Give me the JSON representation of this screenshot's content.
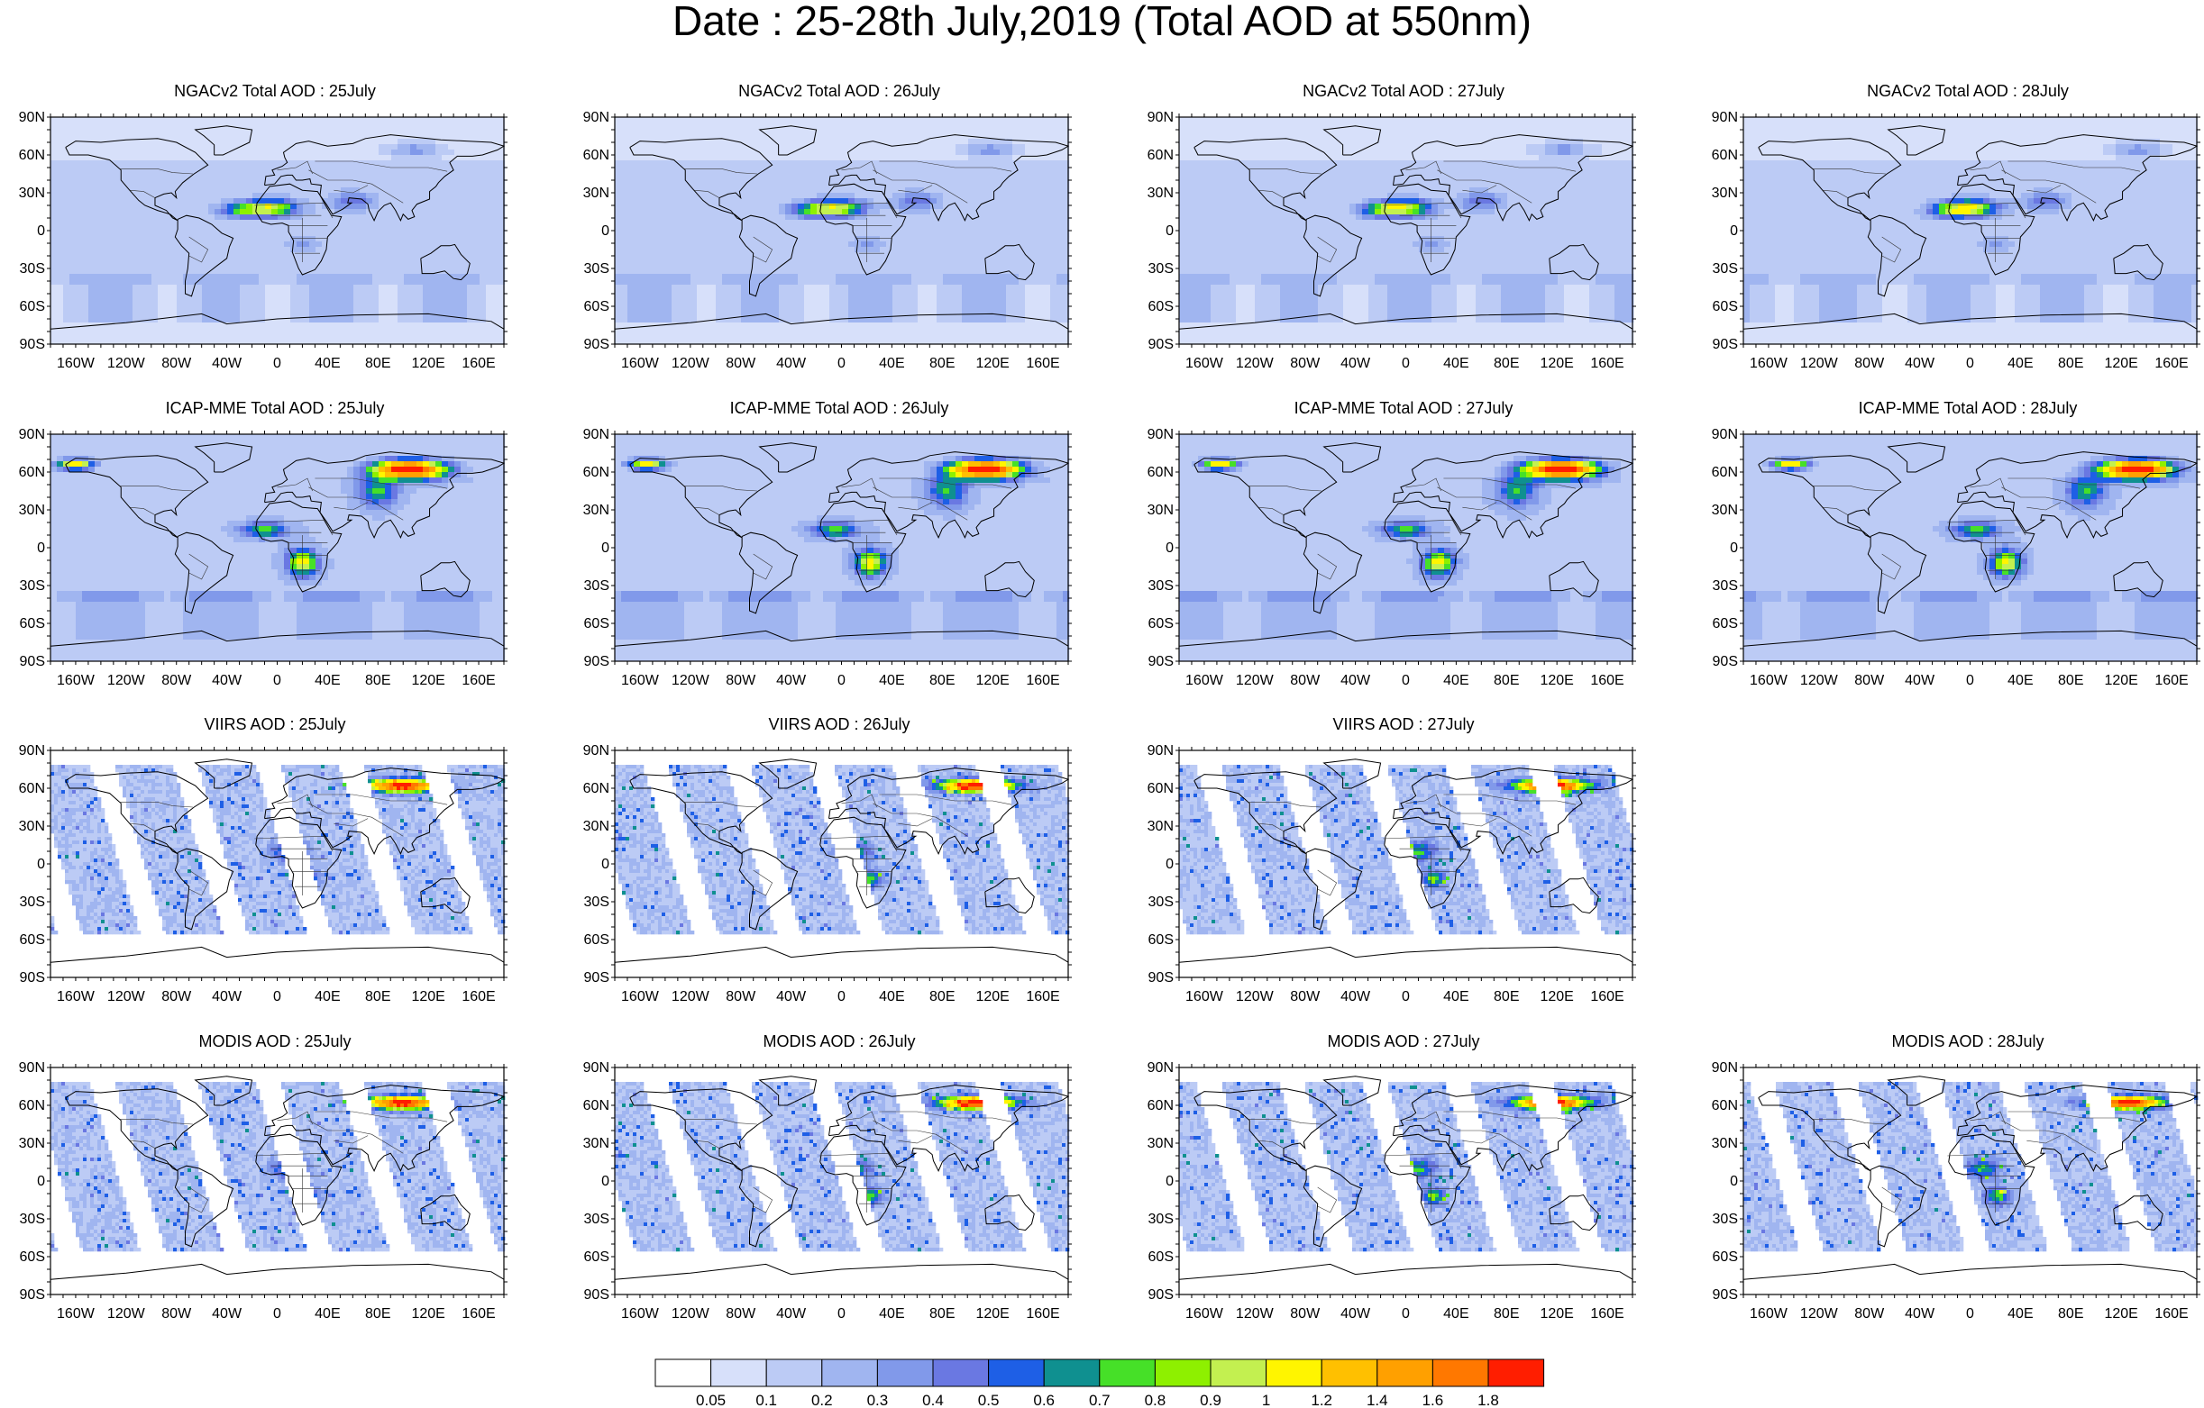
{
  "title": "Date : 25-28th July,2019 (Total AOD at 550nm)",
  "lat_labels": [
    "90N",
    "60N",
    "30N",
    "0",
    "30S",
    "60S",
    "90S"
  ],
  "lon_labels": [
    "160W",
    "120W",
    "80W",
    "40W",
    "0",
    "40E",
    "80E",
    "120E",
    "160E"
  ],
  "panels": [
    {
      "id": "ngac-25",
      "title": "NGACv2 Total AOD : 25July",
      "row": 0,
      "col": 0,
      "product": "ngac"
    },
    {
      "id": "ngac-26",
      "title": "NGACv2 Total AOD : 26July",
      "row": 0,
      "col": 1,
      "product": "ngac"
    },
    {
      "id": "ngac-27",
      "title": "NGACv2 Total AOD : 27July",
      "row": 0,
      "col": 2,
      "product": "ngac"
    },
    {
      "id": "ngac-28",
      "title": "NGACv2 Total AOD : 28July",
      "row": 0,
      "col": 3,
      "product": "ngac"
    },
    {
      "id": "icap-25",
      "title": "ICAP-MME Total AOD : 25July",
      "row": 1,
      "col": 0,
      "product": "icap"
    },
    {
      "id": "icap-26",
      "title": "ICAP-MME Total AOD : 26July",
      "row": 1,
      "col": 1,
      "product": "icap"
    },
    {
      "id": "icap-27",
      "title": "ICAP-MME Total AOD : 27July",
      "row": 1,
      "col": 2,
      "product": "icap"
    },
    {
      "id": "icap-28",
      "title": "ICAP-MME Total AOD : 28July",
      "row": 1,
      "col": 3,
      "product": "icap"
    },
    {
      "id": "viirs-25",
      "title": "VIIRS AOD : 25July",
      "row": 2,
      "col": 0,
      "product": "viirs"
    },
    {
      "id": "viirs-26",
      "title": "VIIRS AOD : 26July",
      "row": 2,
      "col": 1,
      "product": "viirs"
    },
    {
      "id": "viirs-27",
      "title": "VIIRS AOD : 27July",
      "row": 2,
      "col": 2,
      "product": "viirs"
    },
    {
      "id": "modis-25",
      "title": "MODIS AOD : 25July",
      "row": 3,
      "col": 0,
      "product": "modis"
    },
    {
      "id": "modis-26",
      "title": "MODIS AOD : 26July",
      "row": 3,
      "col": 1,
      "product": "modis"
    },
    {
      "id": "modis-27",
      "title": "MODIS AOD : 27July",
      "row": 3,
      "col": 2,
      "product": "modis"
    },
    {
      "id": "modis-28",
      "title": "MODIS AOD : 28July",
      "row": 3,
      "col": 3,
      "product": "modis"
    }
  ],
  "colorbar": {
    "labels": [
      "0.05",
      "0.1",
      "0.2",
      "0.3",
      "0.4",
      "0.5",
      "0.6",
      "0.7",
      "0.8",
      "0.9",
      "1",
      "1.2",
      "1.4",
      "1.6",
      "1.8"
    ],
    "colors": [
      "#ffffff",
      "#d7e0fa",
      "#bccbf5",
      "#a0b5f0",
      "#8199ea",
      "#6a78e2",
      "#1e5fe6",
      "#0f9090",
      "#46e028",
      "#8ef000",
      "#c3f050",
      "#fff500",
      "#ffc000",
      "#ffa000",
      "#ff7800",
      "#ff1e00"
    ]
  }
}
